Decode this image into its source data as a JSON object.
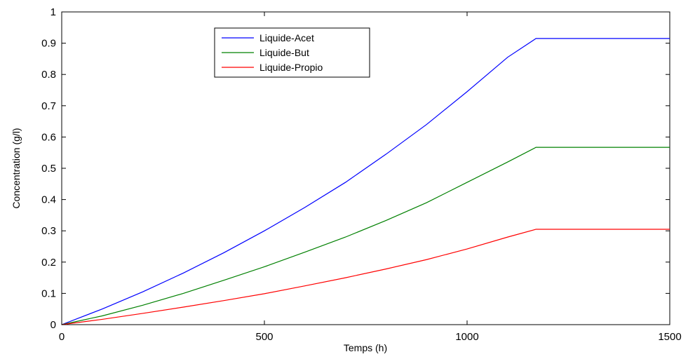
{
  "chart_data": {
    "type": "line",
    "xlabel": "Temps (h)",
    "ylabel": "Concentration (g/l)",
    "xlim": [
      0,
      1500
    ],
    "ylim": [
      0,
      1
    ],
    "xticks": [
      0,
      500,
      1000,
      1500
    ],
    "yticks": [
      0,
      0.1,
      0.2,
      0.3,
      0.4,
      0.5,
      0.6,
      0.7,
      0.8,
      0.9,
      1
    ],
    "grid": false,
    "legend_position": "top-center",
    "x": [
      0,
      100,
      200,
      300,
      400,
      500,
      600,
      700,
      800,
      900,
      1000,
      1100,
      1170,
      1500
    ],
    "series": [
      {
        "name": "Liquide-Acet",
        "color": "#0000ff",
        "values": [
          0,
          0.05,
          0.105,
          0.165,
          0.23,
          0.3,
          0.375,
          0.455,
          0.545,
          0.64,
          0.745,
          0.855,
          0.915,
          0.915
        ]
      },
      {
        "name": "Liquide-But",
        "color": "#008000",
        "values": [
          0,
          0.028,
          0.062,
          0.1,
          0.142,
          0.185,
          0.232,
          0.28,
          0.333,
          0.39,
          0.455,
          0.52,
          0.567,
          0.567
        ]
      },
      {
        "name": "Liquide-Propio",
        "color": "#ff0000",
        "values": [
          0,
          0.017,
          0.036,
          0.056,
          0.077,
          0.099,
          0.124,
          0.15,
          0.178,
          0.208,
          0.242,
          0.28,
          0.305,
          0.305
        ]
      }
    ]
  }
}
